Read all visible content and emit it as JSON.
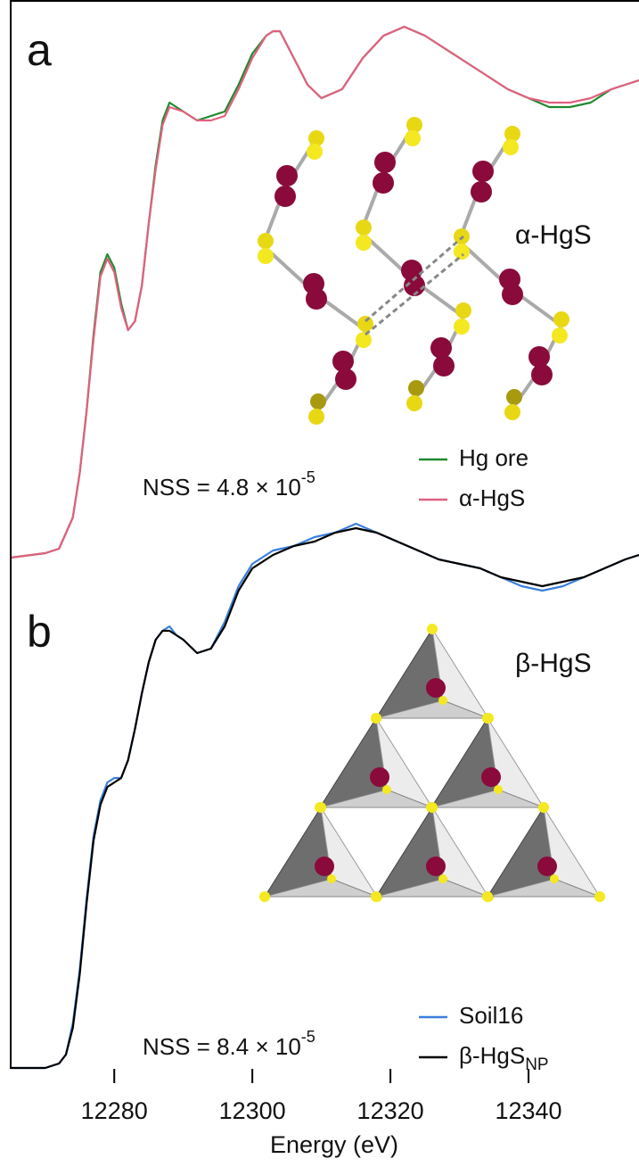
{
  "chart_data": [
    {
      "type": "line",
      "panel_label": "a",
      "structure_label": "α-HgS",
      "annotation": {
        "text": "NSS = 4.8 × 10",
        "superscript": "-5"
      },
      "xlim": [
        12265,
        12356
      ],
      "ylim": [
        0,
        1.25
      ],
      "x": [
        12265,
        12270,
        12272,
        12274,
        12275,
        12276,
        12277,
        12278,
        12279,
        12280,
        12281,
        12282,
        12283,
        12284,
        12285,
        12286,
        12287,
        12288,
        12290,
        12292,
        12294,
        12296,
        12298,
        12300,
        12302,
        12303,
        12304,
        12306,
        12308,
        12310,
        12313,
        12316,
        12319,
        12322,
        12325,
        12328,
        12331,
        12334,
        12337,
        12340,
        12343,
        12346,
        12349,
        12352,
        12356
      ],
      "series": [
        {
          "name": "Hg ore",
          "color": "#1f8a2e",
          "values": [
            0.0,
            0.01,
            0.02,
            0.09,
            0.19,
            0.33,
            0.5,
            0.64,
            0.68,
            0.65,
            0.57,
            0.51,
            0.53,
            0.61,
            0.75,
            0.88,
            0.98,
            1.02,
            1.0,
            0.98,
            0.99,
            1.0,
            1.06,
            1.13,
            1.17,
            1.18,
            1.18,
            1.12,
            1.06,
            1.03,
            1.05,
            1.12,
            1.17,
            1.19,
            1.17,
            1.14,
            1.11,
            1.08,
            1.05,
            1.03,
            1.01,
            1.01,
            1.02,
            1.05,
            1.07
          ]
        },
        {
          "name": "α-HgS",
          "color": "#e2607f",
          "values": [
            0.0,
            0.01,
            0.02,
            0.09,
            0.19,
            0.33,
            0.49,
            0.63,
            0.67,
            0.64,
            0.56,
            0.51,
            0.53,
            0.61,
            0.75,
            0.87,
            0.97,
            1.01,
            1.0,
            0.98,
            0.98,
            0.99,
            1.05,
            1.12,
            1.17,
            1.18,
            1.18,
            1.12,
            1.06,
            1.03,
            1.05,
            1.12,
            1.17,
            1.19,
            1.17,
            1.14,
            1.11,
            1.08,
            1.05,
            1.03,
            1.02,
            1.02,
            1.03,
            1.05,
            1.07
          ]
        }
      ]
    },
    {
      "type": "line",
      "panel_label": "b",
      "structure_label": "β-HgS",
      "annotation": {
        "text": "NSS = 8.4 × 10",
        "superscript": "-5"
      },
      "xlim": [
        12265,
        12356
      ],
      "ylim": [
        0,
        1.25
      ],
      "xticks": [
        12280,
        12300,
        12320,
        12340
      ],
      "xlabel": "Energy (eV)",
      "x": [
        12265,
        12270,
        12272,
        12273,
        12274,
        12275,
        12276,
        12277,
        12278,
        12279,
        12280,
        12281,
        12282,
        12283,
        12284,
        12285,
        12286,
        12287,
        12288,
        12289,
        12290,
        12292,
        12294,
        12296,
        12298,
        12300,
        12303,
        12306,
        12309,
        12312,
        12315,
        12318,
        12321,
        12324,
        12327,
        12330,
        12333,
        12336,
        12339,
        12342,
        12345,
        12348,
        12351,
        12354,
        12356
      ],
      "series": [
        {
          "name": "Soil16",
          "color": "#3a7fdc",
          "values": [
            0.0,
            0.0,
            0.01,
            0.03,
            0.1,
            0.22,
            0.38,
            0.52,
            0.6,
            0.64,
            0.65,
            0.65,
            0.69,
            0.76,
            0.84,
            0.91,
            0.96,
            0.98,
            0.99,
            0.97,
            0.96,
            0.93,
            0.94,
            1.0,
            1.08,
            1.13,
            1.16,
            1.17,
            1.19,
            1.2,
            1.22,
            1.2,
            1.18,
            1.16,
            1.14,
            1.13,
            1.12,
            1.1,
            1.08,
            1.07,
            1.08,
            1.1,
            1.12,
            1.14,
            1.15
          ]
        },
        {
          "name": "β-HgS",
          "name_subscript": "NP",
          "color": "#000000",
          "values": [
            0.0,
            0.0,
            0.01,
            0.03,
            0.09,
            0.21,
            0.37,
            0.51,
            0.59,
            0.63,
            0.64,
            0.65,
            0.69,
            0.76,
            0.84,
            0.91,
            0.96,
            0.98,
            0.98,
            0.97,
            0.96,
            0.93,
            0.94,
            0.99,
            1.07,
            1.12,
            1.15,
            1.17,
            1.18,
            1.2,
            1.21,
            1.2,
            1.18,
            1.16,
            1.14,
            1.13,
            1.12,
            1.1,
            1.09,
            1.08,
            1.09,
            1.1,
            1.12,
            1.14,
            1.15
          ]
        }
      ]
    }
  ]
}
